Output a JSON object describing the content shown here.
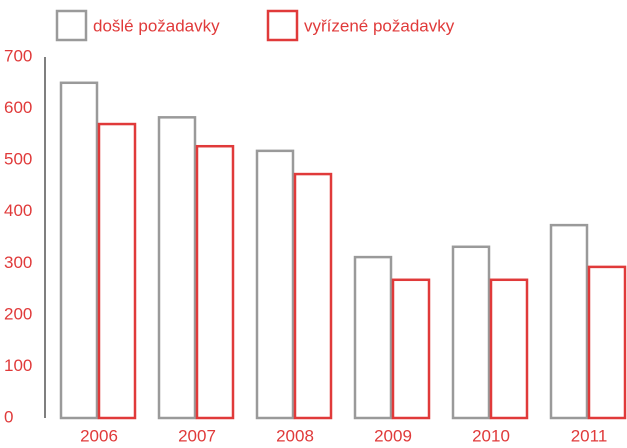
{
  "chart_data": {
    "type": "bar",
    "categories": [
      "2006",
      "2007",
      "2008",
      "2009",
      "2010",
      "2011"
    ],
    "series": [
      {
        "name": "došlé požadavky",
        "color": "#9a9a9a",
        "values": [
          650,
          583,
          518,
          312,
          332,
          374
        ]
      },
      {
        "name": "vyřízené požadavky",
        "color": "#e03a3a",
        "values": [
          570,
          527,
          473,
          268,
          268,
          293
        ]
      }
    ],
    "ylim": [
      0,
      700
    ],
    "yticks": [
      0,
      100,
      200,
      300,
      400,
      500,
      600,
      700
    ],
    "grid": false,
    "legend": "top",
    "label_color": "#e03a3a"
  }
}
